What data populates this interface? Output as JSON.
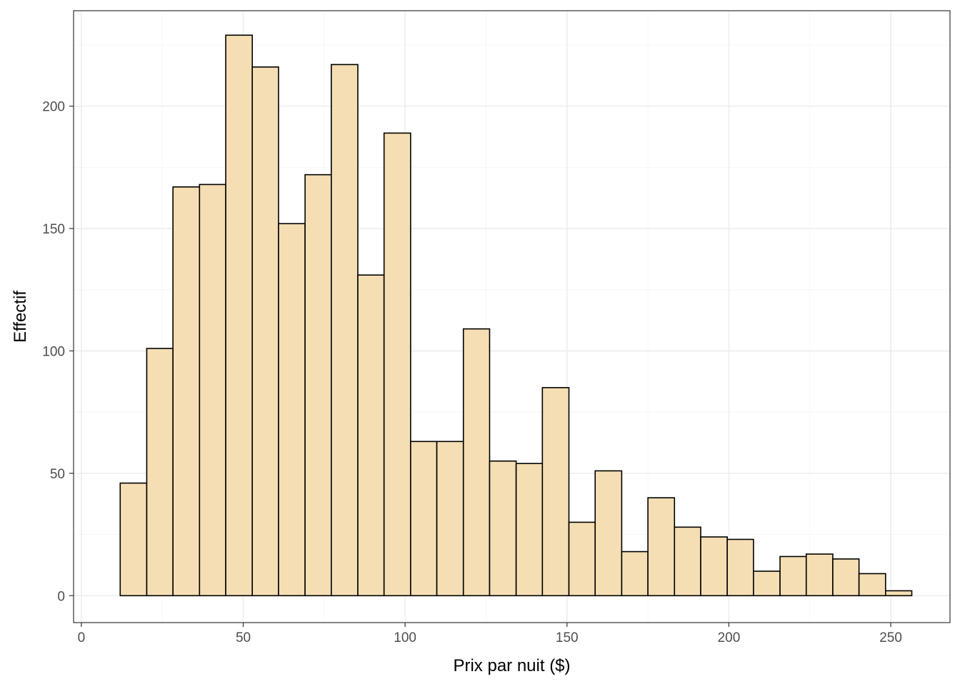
{
  "colors": {
    "bar_fill": "#F5DEB3",
    "bar_stroke": "#000000",
    "grid_major": "#EBEBEB",
    "grid_minor": "#F4F4F4",
    "panel_border": "#333333",
    "tick_text": "#4D4D4D"
  },
  "chart_data": {
    "type": "bar",
    "subtype": "histogram",
    "xlabel": "Prix par nuit ($)",
    "ylabel": "Effectif",
    "xlim": [
      -2.4,
      268.3
    ],
    "ylim": [
      -11,
      239
    ],
    "x_ticks": [
      0,
      50,
      100,
      150,
      200,
      250
    ],
    "y_ticks": [
      0,
      50,
      100,
      150,
      200
    ],
    "grid": true,
    "legend": "none",
    "bin_width": 8.15,
    "bins": [
      {
        "x0": 12.0,
        "x1": 20.2,
        "count": 46
      },
      {
        "x0": 20.2,
        "x1": 28.3,
        "count": 101
      },
      {
        "x0": 28.3,
        "x1": 36.5,
        "count": 167
      },
      {
        "x0": 36.5,
        "x1": 44.6,
        "count": 168
      },
      {
        "x0": 44.6,
        "x1": 52.8,
        "count": 229
      },
      {
        "x0": 52.8,
        "x1": 60.9,
        "count": 216
      },
      {
        "x0": 60.9,
        "x1": 69.1,
        "count": 152
      },
      {
        "x0": 69.1,
        "x1": 77.2,
        "count": 172
      },
      {
        "x0": 77.2,
        "x1": 85.4,
        "count": 217
      },
      {
        "x0": 85.4,
        "x1": 93.5,
        "count": 131
      },
      {
        "x0": 93.5,
        "x1": 101.7,
        "count": 189
      },
      {
        "x0": 101.7,
        "x1": 109.8,
        "count": 63
      },
      {
        "x0": 109.8,
        "x1": 118.0,
        "count": 63
      },
      {
        "x0": 118.0,
        "x1": 126.1,
        "count": 109
      },
      {
        "x0": 126.1,
        "x1": 134.3,
        "count": 55
      },
      {
        "x0": 134.3,
        "x1": 142.4,
        "count": 54
      },
      {
        "x0": 142.4,
        "x1": 150.6,
        "count": 85
      },
      {
        "x0": 150.6,
        "x1": 158.7,
        "count": 30
      },
      {
        "x0": 158.7,
        "x1": 166.9,
        "count": 51
      },
      {
        "x0": 166.9,
        "x1": 175.0,
        "count": 18
      },
      {
        "x0": 175.0,
        "x1": 183.2,
        "count": 40
      },
      {
        "x0": 183.2,
        "x1": 191.3,
        "count": 28
      },
      {
        "x0": 191.3,
        "x1": 199.5,
        "count": 24
      },
      {
        "x0": 199.5,
        "x1": 207.6,
        "count": 23
      },
      {
        "x0": 207.6,
        "x1": 215.8,
        "count": 10
      },
      {
        "x0": 215.8,
        "x1": 223.9,
        "count": 16
      },
      {
        "x0": 223.9,
        "x1": 232.1,
        "count": 17
      },
      {
        "x0": 232.1,
        "x1": 240.2,
        "count": 15
      },
      {
        "x0": 240.2,
        "x1": 248.4,
        "count": 9
      },
      {
        "x0": 248.4,
        "x1": 256.5,
        "count": 2
      }
    ]
  }
}
